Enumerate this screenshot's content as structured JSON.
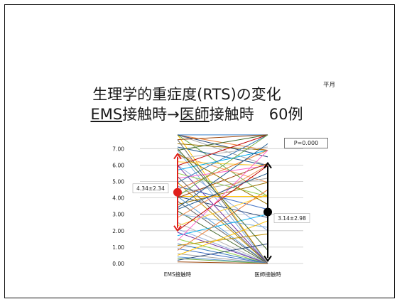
{
  "slide": {
    "title_line1": "生理学的重症度(RTS)の変化",
    "title_line2_a": "EMS",
    "title_line2_b": "接触時→",
    "title_line2_c": "医師",
    "title_line2_d": "接触時　60例",
    "corner_fragment": "平月",
    "p_value": "P=0.000"
  },
  "chart_data": {
    "type": "line",
    "categories": [
      "EMS接触時",
      "医師接触時"
    ],
    "ylim": [
      0,
      7.84
    ],
    "yticks": [
      "0.00",
      "1.00",
      "2.00",
      "3.00",
      "4.00",
      "5.00",
      "6.00",
      "7.00"
    ],
    "grid": true,
    "lines": [
      [
        7.84,
        7.84
      ],
      [
        7.84,
        6.9
      ],
      [
        7.84,
        5.97
      ],
      [
        7.84,
        0
      ],
      [
        7.84,
        7.84
      ],
      [
        7.84,
        4.09
      ],
      [
        7.84,
        6.5
      ],
      [
        7.55,
        7.84
      ],
      [
        7.55,
        0
      ],
      [
        7.3,
        6.9
      ],
      [
        7.1,
        5.97
      ],
      [
        6.9,
        7.84
      ],
      [
        6.9,
        0
      ],
      [
        6.6,
        4.94
      ],
      [
        6.4,
        7.1
      ],
      [
        6.2,
        5.97
      ],
      [
        6.0,
        2.0
      ],
      [
        5.97,
        7.84
      ],
      [
        5.97,
        0
      ],
      [
        5.7,
        6.9
      ],
      [
        5.5,
        4.09
      ],
      [
        5.2,
        5.97
      ],
      [
        4.94,
        7.84
      ],
      [
        4.94,
        0
      ],
      [
        4.7,
        3.3
      ],
      [
        4.5,
        6.9
      ],
      [
        4.3,
        5.2
      ],
      [
        4.09,
        4.09
      ],
      [
        4.09,
        0
      ],
      [
        4.09,
        7.84
      ],
      [
        4.09,
        2.8
      ],
      [
        4.0,
        6.1
      ],
      [
        3.8,
        0
      ],
      [
        3.6,
        4.94
      ],
      [
        3.4,
        7.3
      ],
      [
        3.2,
        0
      ],
      [
        3.0,
        2.2
      ],
      [
        2.8,
        6.0
      ],
      [
        2.5,
        0
      ],
      [
        2.3,
        4.2
      ],
      [
        2.1,
        0
      ],
      [
        2.0,
        5.97
      ],
      [
        1.9,
        0
      ],
      [
        1.7,
        3.0
      ],
      [
        1.5,
        0
      ],
      [
        1.4,
        6.9
      ],
      [
        1.2,
        0
      ],
      [
        1.1,
        1.8
      ],
      [
        0.9,
        0
      ],
      [
        0.8,
        4.5
      ],
      [
        0.6,
        0
      ],
      [
        0.5,
        2.6
      ],
      [
        0.4,
        0
      ],
      [
        0.3,
        0
      ],
      [
        0.2,
        1.2
      ],
      [
        0.1,
        0
      ],
      [
        5.3,
        0
      ],
      [
        6.7,
        3.6
      ],
      [
        3.3,
        5.5
      ],
      [
        7.0,
        0.8
      ]
    ],
    "summary": [
      {
        "category": "EMS接触時",
        "mean": 4.34,
        "sd": 2.34,
        "label": "4.34±2.34",
        "color": "#e0201c"
      },
      {
        "category": "医師接触時",
        "mean": 3.14,
        "sd": 2.98,
        "label": "3.14±2.98",
        "color": "#000000"
      }
    ]
  }
}
